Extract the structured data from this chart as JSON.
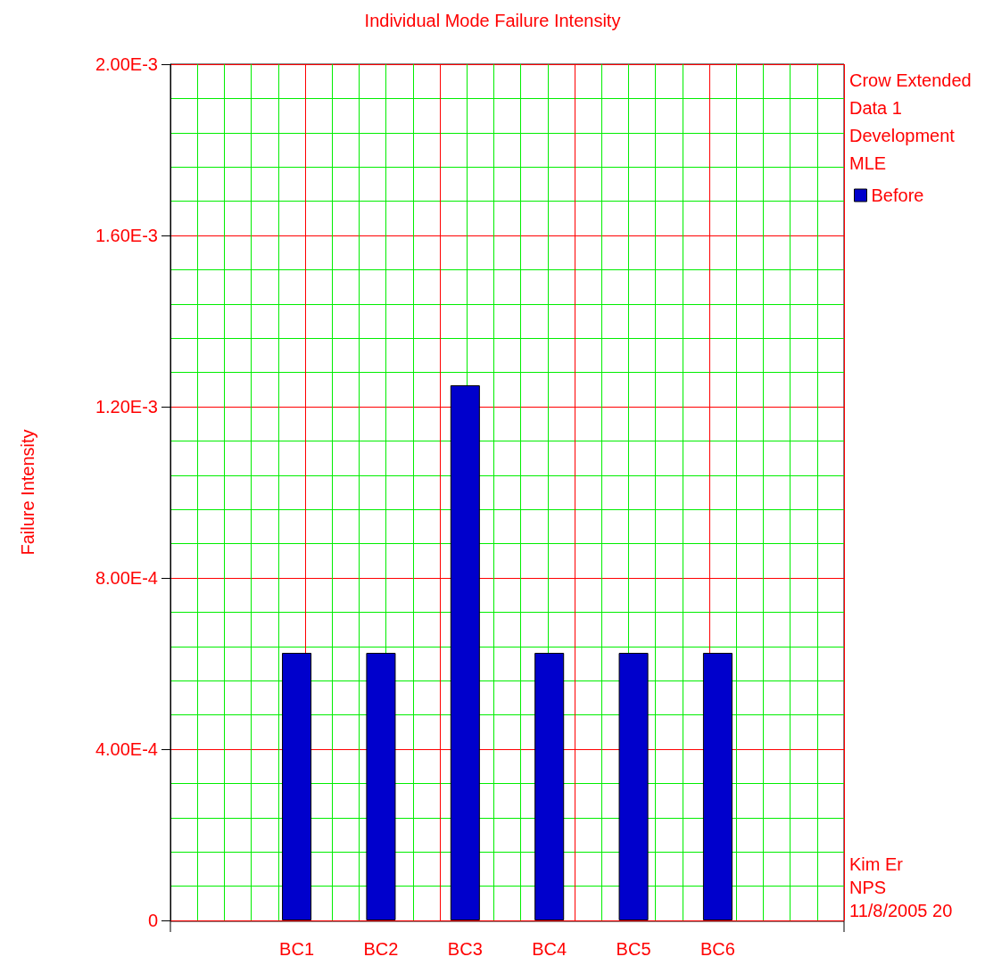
{
  "chart_data": {
    "type": "bar",
    "title": "Individual Mode Failure Intensity",
    "ylabel": "Failure Intensity",
    "categories": [
      "BC1",
      "BC2",
      "BC3",
      "BC4",
      "BC5",
      "BC6"
    ],
    "series": [
      {
        "name": "Before",
        "color": "#0000cc",
        "values": [
          0.000625,
          0.000625,
          0.00125,
          0.000625,
          0.000625,
          0.000625
        ]
      }
    ],
    "ylim": [
      0,
      0.002
    ],
    "yticks": [
      0,
      {
        "value": 0.0004,
        "label": "4.00E-4"
      },
      {
        "value": 0.0008,
        "label": "8.00E-4"
      },
      {
        "value": 0.0012,
        "label": "1.20E-3"
      },
      {
        "value": 0.0016,
        "label": "1.60E-3"
      },
      {
        "value": 0.002,
        "label": "2.00E-3"
      }
    ],
    "grid": true,
    "legend": "top right",
    "annotations": [
      "Crow Extended",
      "Data 1",
      "Development",
      "MLE",
      "Kim Er",
      "NPS",
      "11/8/2005 20"
    ]
  }
}
